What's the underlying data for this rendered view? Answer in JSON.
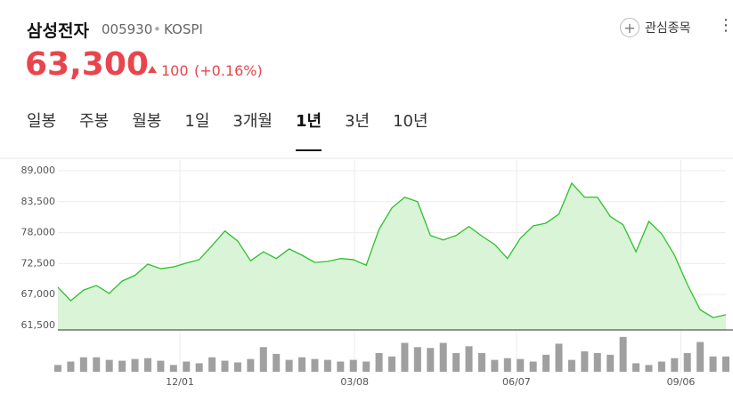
{
  "header": {
    "name": "삼성전자",
    "code": "005930",
    "separator": "•",
    "market": "KOSPI",
    "favorite": "관심종목",
    "favorite_icon": "+",
    "menu": "⋮"
  },
  "quote": {
    "price": "63,300",
    "change": "100",
    "change_percent": "(+0.16%)"
  },
  "tabs": {
    "items": [
      "일봉",
      "주봉",
      "월봉",
      "1일",
      "3개월",
      "1년",
      "3년",
      "10년"
    ],
    "selected": 5
  },
  "chart_data": {
    "type": "line",
    "x": [
      0,
      1,
      2,
      3,
      4,
      5,
      6,
      7,
      8,
      9,
      10,
      11,
      12,
      13,
      14,
      15,
      16,
      17,
      18,
      19,
      20,
      21,
      22,
      23,
      24,
      25,
      26,
      27,
      28,
      29,
      30,
      31,
      32,
      33,
      34,
      35,
      36,
      37,
      38,
      39,
      40,
      41,
      42,
      43,
      44,
      45,
      46,
      47,
      48,
      49,
      50,
      51,
      52
    ],
    "series": [
      {
        "color": "#2ec02e",
        "fill": "#d9f4d6",
        "values": [
          68300,
          65900,
          67800,
          68600,
          67200,
          69400,
          70400,
          72400,
          71600,
          71900,
          72600,
          73200,
          75700,
          78300,
          76500,
          73000,
          74600,
          73400,
          75100,
          74000,
          72700,
          72900,
          73400,
          73200,
          72200,
          78600,
          82400,
          84300,
          83500,
          77500,
          76700,
          77500,
          79100,
          77400,
          75900,
          73400,
          77000,
          79200,
          79700,
          81300,
          86800,
          84300,
          84300,
          80900,
          79400,
          74600,
          80000,
          77800,
          74000,
          68800,
          64300,
          62900,
          63400
        ]
      }
    ],
    "xlim": [
      0,
      52
    ],
    "xticks": [
      {
        "value": 9.5,
        "label": "12/01"
      },
      {
        "value": 23.1,
        "label": "03/08"
      },
      {
        "value": 35.7,
        "label": "06/07"
      },
      {
        "value": 48.5,
        "label": "09/06"
      }
    ],
    "ylim": [
      60700,
      90900
    ],
    "yticks": [
      {
        "value": 61500,
        "label": "61,500"
      },
      {
        "value": 67000,
        "label": "67,000"
      },
      {
        "value": 72500,
        "label": "72,500"
      },
      {
        "value": 78000,
        "label": "78,000"
      },
      {
        "value": 83500,
        "label": "83,500"
      },
      {
        "value": 89000,
        "label": "89,000"
      }
    ],
    "grid": true,
    "volume": {
      "color": "#a0a0a0",
      "ylim": [
        0,
        45
      ],
      "values": [
        8,
        12,
        17,
        17,
        14,
        13,
        15,
        16,
        13,
        8,
        12,
        10,
        17,
        13,
        11,
        15,
        29,
        21,
        14,
        17,
        15,
        14,
        12,
        14,
        12,
        22,
        18,
        34,
        29,
        28,
        34,
        22,
        30,
        22,
        14,
        16,
        15,
        12,
        20,
        33,
        14,
        24,
        22,
        20,
        41,
        10,
        8,
        12,
        16,
        22,
        35,
        18,
        18
      ]
    }
  }
}
